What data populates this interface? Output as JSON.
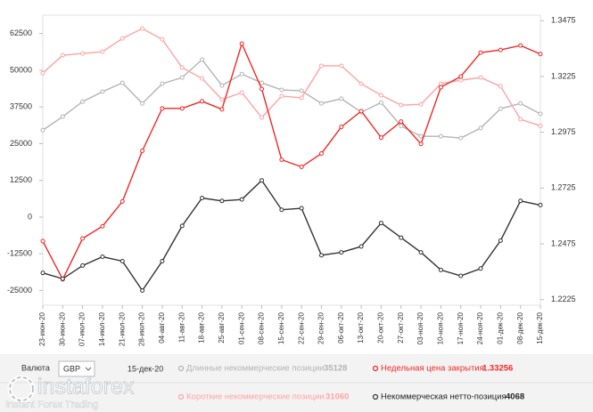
{
  "chart_data": {
    "type": "line",
    "categories": [
      "23-июн-20",
      "30-июн-20",
      "07-июл-20",
      "14-июл-20",
      "21-июл-20",
      "28-июл-20",
      "04-авг-20",
      "11-авг-20",
      "18-авг-20",
      "25-авг-20",
      "01-сен-20",
      "08-сен-20",
      "15-сен-20",
      "22-сен-20",
      "29-сен-20",
      "06-окт-20",
      "13-окт-20",
      "20-окт-20",
      "27-окт-20",
      "03-ноя-20",
      "10-ноя-20",
      "17-ноя-20",
      "24-ноя-20",
      "01-дек-20",
      "08-дек-20",
      "15-дек-20"
    ],
    "series": [
      {
        "name": "Длинные некоммерческие позиции",
        "color": "#b4b4b4",
        "values": [
          29600,
          34200,
          39300,
          42700,
          45700,
          38700,
          45400,
          47500,
          53600,
          44800,
          48700,
          45700,
          43300,
          43000,
          38700,
          40300,
          35700,
          39000,
          31000,
          27500,
          27500,
          26900,
          30300,
          36900,
          38700,
          35128
        ]
      },
      {
        "name": "Короткие некоммерческие позиции",
        "color": "#ffa3a3",
        "values": [
          49000,
          55100,
          55700,
          56300,
          60800,
          64200,
          60500,
          50900,
          47200,
          40000,
          42400,
          33900,
          41200,
          40600,
          51500,
          51500,
          45400,
          41500,
          38100,
          38400,
          45400,
          46600,
          47500,
          44500,
          33300,
          31060
        ]
      },
      {
        "name": "Недельная цена закрытия",
        "color": "#f02828",
        "axis": "y2",
        "values": [
          1.2487,
          1.2316,
          1.2499,
          1.2554,
          1.2665,
          1.2892,
          1.3082,
          1.3082,
          1.3114,
          1.3078,
          1.3372,
          1.3169,
          1.2852,
          1.282,
          1.288,
          1.2999,
          1.307,
          1.2951,
          1.3023,
          1.2923,
          1.3177,
          1.3225,
          1.3332,
          1.3344,
          1.3364,
          1.33256
        ]
      },
      {
        "name": "Некоммерческая нетто-позиция",
        "color": "#333333",
        "values": [
          -19000,
          -21000,
          -16500,
          -13500,
          -15000,
          -25000,
          -15000,
          -3000,
          6500,
          5500,
          6000,
          12500,
          2500,
          3000,
          -13000,
          -12000,
          -10000,
          -2000,
          -7000,
          -12000,
          -18000,
          -20000,
          -17500,
          -8000,
          5500,
          4068
        ]
      }
    ],
    "ylim": [
      -30000,
      68750
    ],
    "yticks": [
      -25000,
      -12500,
      0,
      12500,
      25000,
      37500,
      50000,
      62500
    ],
    "y2lim": [
      1.22,
      1.35
    ],
    "y2ticks": [
      1.2225,
      1.2475,
      1.2725,
      1.2975,
      1.3225,
      1.3475
    ],
    "grid": false
  },
  "footer": {
    "currency_label": "Валюта",
    "currency": "GBP"
  },
  "watermark": {
    "brand": "instaforex",
    "tagline": "Instant Forex Trading"
  }
}
